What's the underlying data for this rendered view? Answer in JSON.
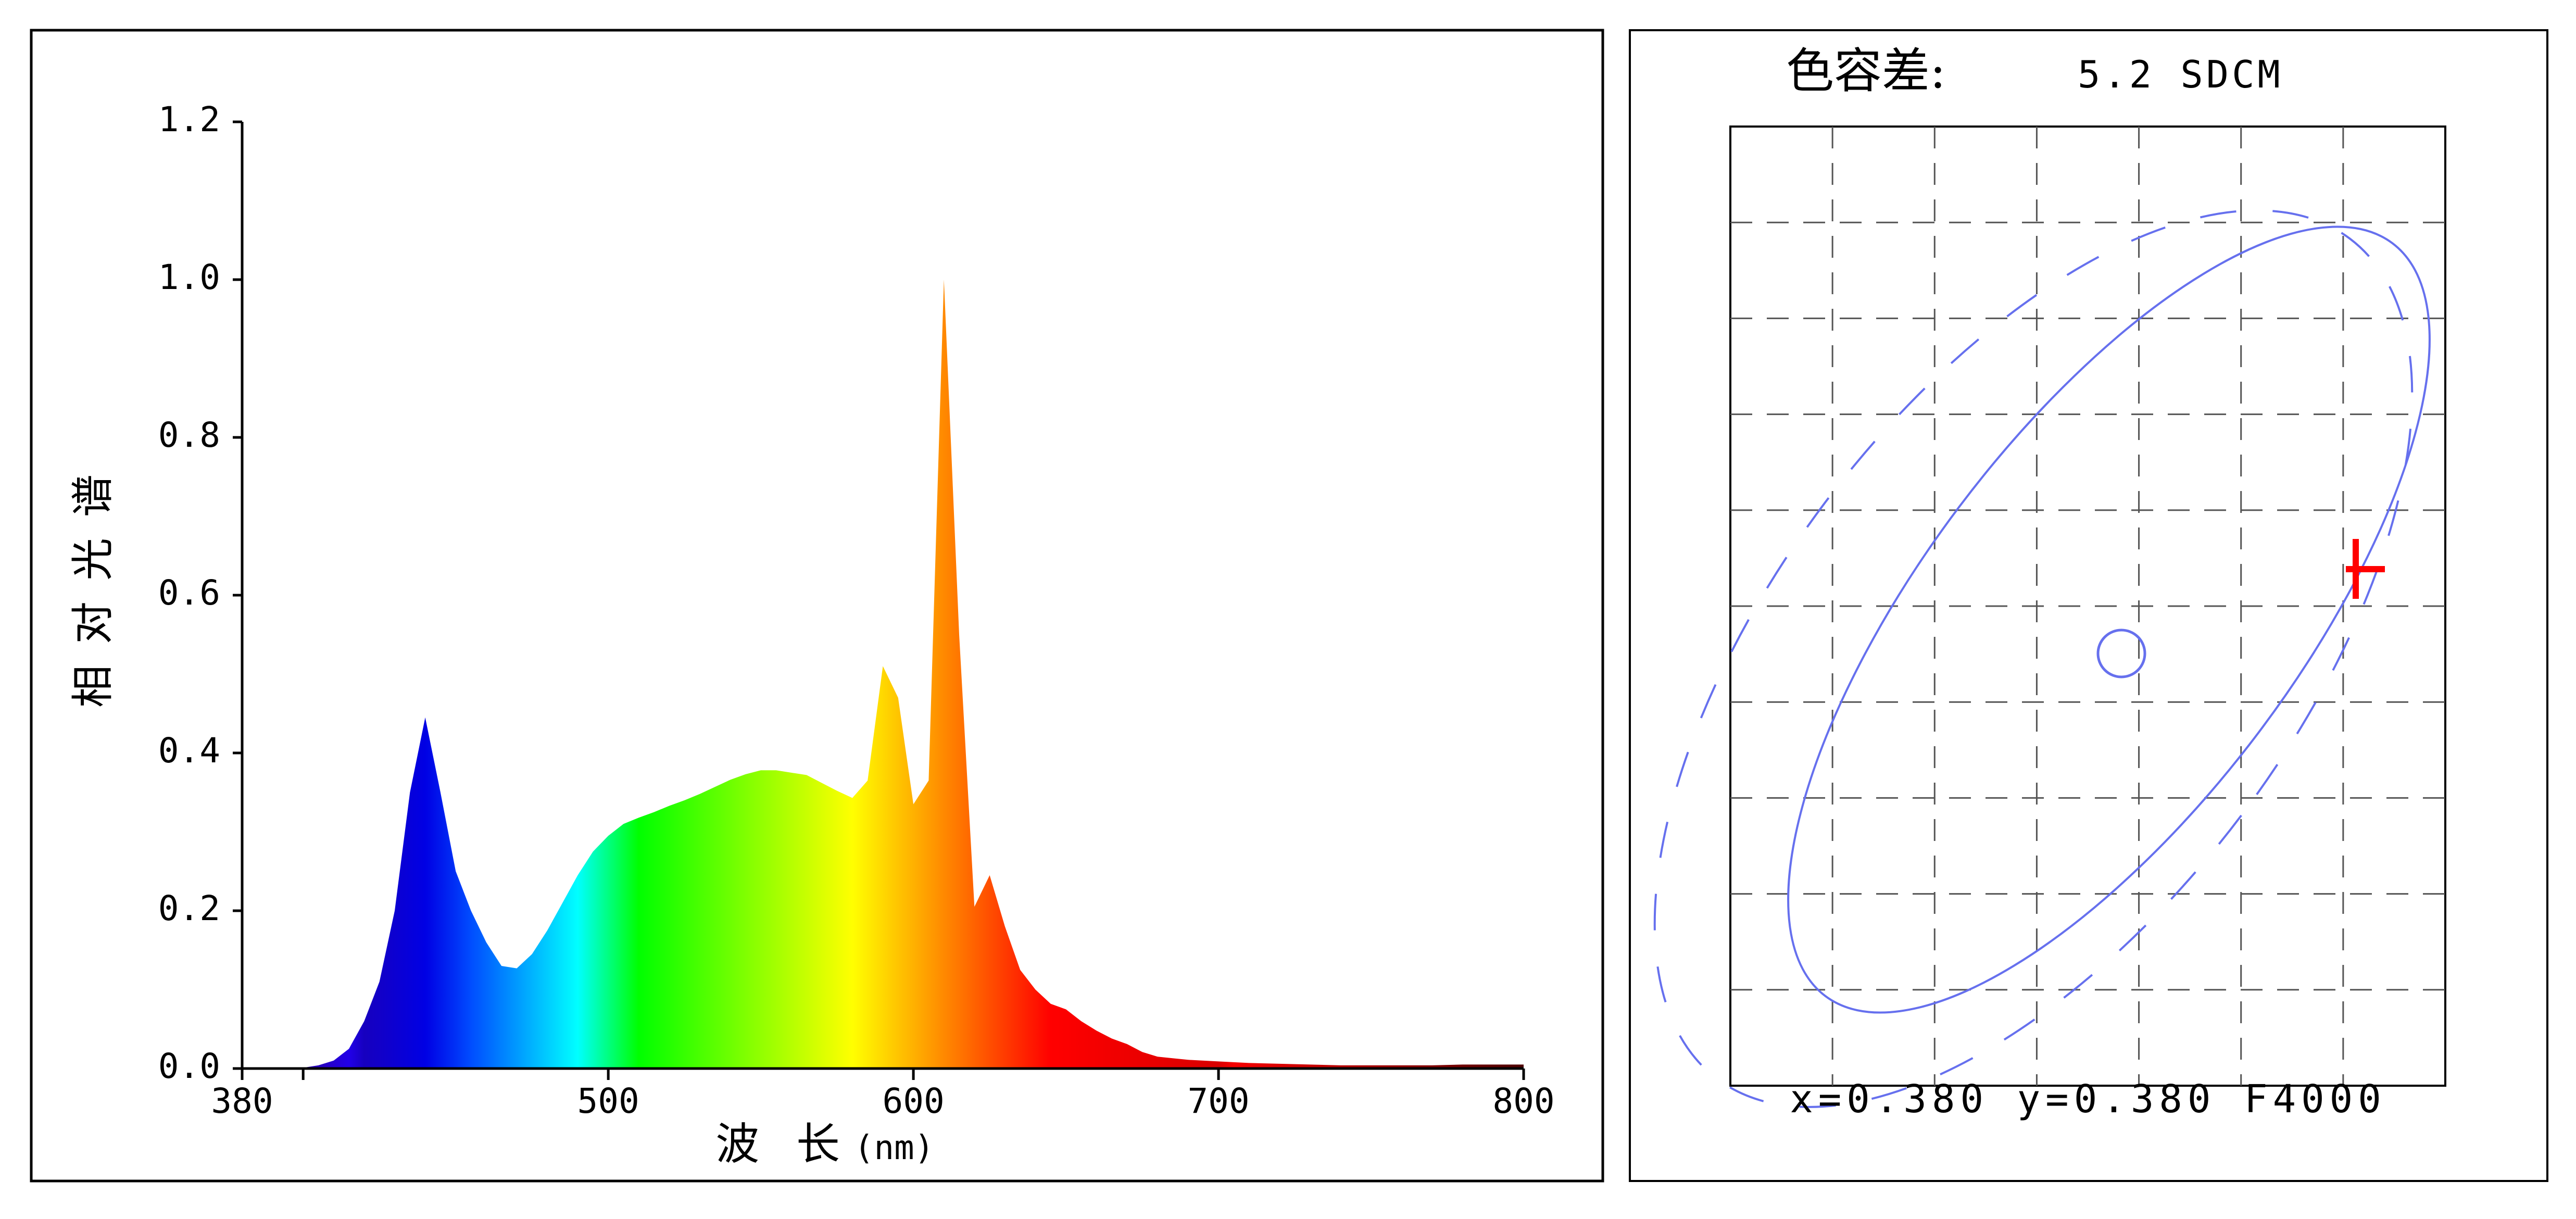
{
  "chart_data": [
    {
      "type": "area",
      "xlabel": "波 长",
      "xlabel_unit": "(nm)",
      "ylabel": "相对光谱",
      "xlim": [
        380,
        800
      ],
      "ylim": [
        0,
        1.2
      ],
      "xticks": [
        380,
        500,
        600,
        700,
        800
      ],
      "xtick_labels": [
        "380",
        "500",
        "600",
        "700",
        "800"
      ],
      "xminor_ticks": [
        400
      ],
      "yticks": [
        0.0,
        0.2,
        0.4,
        0.6,
        0.8,
        1.0,
        1.2
      ],
      "ytick_labels": [
        "0.0",
        "0.2",
        "0.4",
        "0.6",
        "0.8",
        "1.0",
        "1.2"
      ],
      "grid": false,
      "fill": "spectral-gradient",
      "x": [
        380,
        390,
        400,
        405,
        410,
        415,
        420,
        425,
        430,
        435,
        440,
        445,
        450,
        455,
        460,
        465,
        470,
        475,
        480,
        485,
        490,
        495,
        500,
        505,
        510,
        515,
        520,
        525,
        530,
        535,
        540,
        545,
        550,
        555,
        560,
        565,
        570,
        575,
        580,
        585,
        590,
        595,
        600,
        605,
        610,
        615,
        620,
        625,
        630,
        635,
        640,
        645,
        650,
        655,
        660,
        665,
        670,
        675,
        680,
        690,
        700,
        710,
        720,
        730,
        740,
        750,
        760,
        770,
        780,
        790,
        800
      ],
      "values": [
        0.0,
        0.0,
        0.001,
        0.004,
        0.01,
        0.025,
        0.06,
        0.11,
        0.2,
        0.35,
        0.445,
        0.35,
        0.25,
        0.2,
        0.16,
        0.13,
        0.127,
        0.145,
        0.175,
        0.21,
        0.245,
        0.275,
        0.295,
        0.31,
        0.318,
        0.325,
        0.333,
        0.34,
        0.348,
        0.357,
        0.366,
        0.373,
        0.378,
        0.378,
        0.375,
        0.372,
        0.362,
        0.352,
        0.343,
        0.365,
        0.51,
        0.47,
        0.335,
        0.365,
        1.0,
        0.55,
        0.205,
        0.245,
        0.18,
        0.125,
        0.1,
        0.082,
        0.075,
        0.06,
        0.048,
        0.038,
        0.031,
        0.021,
        0.015,
        0.011,
        0.009,
        0.007,
        0.006,
        0.005,
        0.004,
        0.004,
        0.004,
        0.004,
        0.005,
        0.005,
        0.005
      ]
    },
    {
      "type": "scatter",
      "title_label": "色容差:",
      "title_value": "5.2 SDCM",
      "footer": "x=0.380 y=0.380 F4000",
      "grid": true,
      "grid_style": "dashed",
      "ellipse_color": "#6670ee",
      "marker_color": "#ff0000",
      "marker": "+"
    }
  ],
  "colors": {
    "frame": "#000000",
    "ellipse": "#6670ee",
    "marker": "#ff0000",
    "grid": "#555555"
  }
}
